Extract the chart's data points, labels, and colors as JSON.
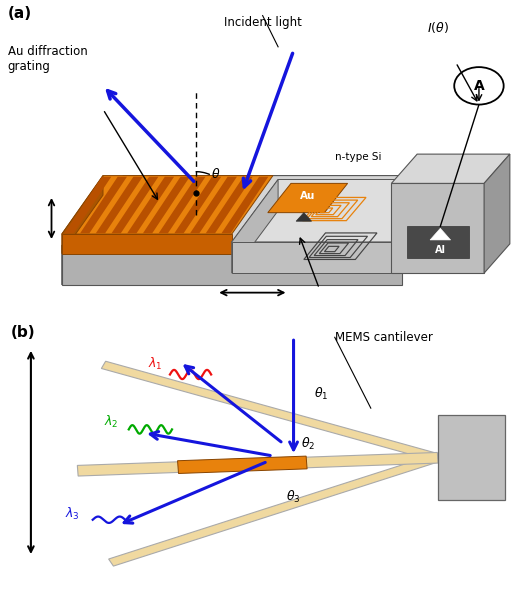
{
  "fig_width": 5.15,
  "fig_height": 6.03,
  "bg_color": "#ffffff",
  "label_a": "(a)",
  "label_b": "(b)",
  "incident_light_text": "Incident light",
  "I_theta_text": "$I(\\theta)$",
  "Au_diffraction_text": "Au diffraction\ngrating",
  "n_type_Si_text": "n-type Si",
  "Al_text": "Al",
  "Au_text": "Au",
  "MEMS_cantilever_text": "MEMS cantilever",
  "orange_color": "#E8820C",
  "dark_orange": "#CC6600",
  "light_orange": "#F5C87A",
  "gray_light": "#C8C8C8",
  "gray_mid": "#A0A0A0",
  "gray_dark": "#707070",
  "blue_color": "#1515DD",
  "red_color": "#EE1111",
  "green_color": "#00AA00",
  "cantilever_tan": "#F0D9A0"
}
